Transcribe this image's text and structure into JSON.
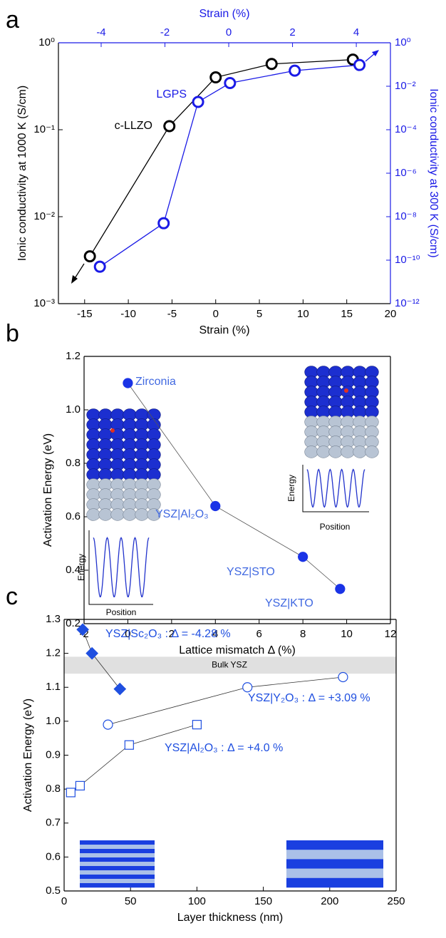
{
  "chart_data": [
    {
      "type": "line",
      "panel_label": "a",
      "xlabel": "Strain (%)",
      "x2label": "Strain (%)",
      "ylabel": "Ionic conductivity at 1000 K (S/cm)",
      "y2label": "Ionic conductivity at 300 K (S/cm)",
      "xlim": [
        -18,
        20
      ],
      "xticks": [
        -15,
        -10,
        -5,
        0,
        5,
        10,
        15,
        20
      ],
      "x2lim": [
        -5.34,
        5.07
      ],
      "x2ticks": [
        -4,
        -2,
        0,
        2,
        4
      ],
      "ylim": [
        0.001,
        1
      ],
      "ylog": true,
      "yticks": [
        {
          "value": 0.001,
          "label": "10⁻³"
        },
        {
          "value": 0.01,
          "label": "10⁻²"
        },
        {
          "value": 0.1,
          "label": "10⁻¹"
        },
        {
          "value": 1,
          "label": "10⁰"
        }
      ],
      "y2lim": [
        1e-12,
        1
      ],
      "y2log": true,
      "y2ticks": [
        {
          "value": 1e-12,
          "label": "10⁻¹²"
        },
        {
          "value": 1e-10,
          "label": "10⁻¹⁰"
        },
        {
          "value": 1e-08,
          "label": "10⁻⁸"
        },
        {
          "value": 1e-06,
          "label": "10⁻⁶"
        },
        {
          "value": 0.0001,
          "label": "10⁻⁴"
        },
        {
          "value": 0.01,
          "label": "10⁻²"
        },
        {
          "value": 1,
          "label": "10⁰"
        }
      ],
      "series": [
        {
          "name": "c-LLZO",
          "color": "#000000",
          "marker": "circle",
          "filled": false,
          "x": [
            -14.4,
            -5.3,
            0,
            6.4,
            15.7
          ],
          "values": [
            0.0035,
            0.11,
            0.4,
            0.57,
            0.64
          ]
        },
        {
          "name": "LGPS",
          "color": "#1a1ae6",
          "marker": "circle",
          "filled": false,
          "axis": "y2",
          "xaxis": "x2",
          "x": [
            -4.04,
            -2.04,
            -0.96,
            0.04,
            2.07,
            4.1
          ],
          "values": [
            5e-11,
            5e-09,
            0.0019,
            0.014,
            0.052,
            0.095
          ]
        }
      ]
    },
    {
      "type": "line",
      "panel_label": "b",
      "xlabel": "Lattice mismatch Δ (%)",
      "ylabel": "Activation Energy (eV)",
      "xlim": [
        -2,
        12
      ],
      "xticks": [
        -2,
        0,
        2,
        4,
        6,
        8,
        10,
        12
      ],
      "ylim": [
        0.2,
        1.2
      ],
      "yticks": [
        0.2,
        0.4,
        0.6,
        0.8,
        {
          "value": 1,
          "label": "1.0"
        },
        1.2
      ],
      "series": [
        {
          "color": "#1a33e6",
          "line_color": "#555555",
          "marker": "circle",
          "filled": true,
          "x": [
            0,
            4,
            8,
            9.7
          ],
          "values": [
            1.1,
            0.64,
            0.45,
            0.33
          ],
          "point_labels": [
            "Zirconia",
            "YSZ|Al₂O₃",
            "YSZ|STO",
            "YSZ|KTO"
          ]
        }
      ],
      "insets": [
        {
          "ylabel": "Energy",
          "xlabel": "Position"
        },
        {
          "ylabel": "Energy",
          "xlabel": "Position"
        }
      ]
    },
    {
      "type": "line",
      "panel_label": "c",
      "xlabel": "Layer thickness (nm)",
      "ylabel": "Activation Energy (eV)",
      "xlim": [
        0,
        250
      ],
      "xticks": [
        0,
        50,
        100,
        150,
        200,
        250
      ],
      "ylim": [
        0.5,
        1.3
      ],
      "yticks": [
        0.5,
        0.6,
        0.7,
        0.8,
        0.9,
        {
          "value": 1,
          "label": "1.0"
        },
        1.1,
        1.2,
        1.3
      ],
      "band": {
        "label": "Bulk YSZ",
        "range": [
          1.14,
          1.19
        ],
        "color": "#e0e0e0"
      },
      "series": [
        {
          "name": "YSZ|Sc₂O₃ : Δ = -4.28 %",
          "color": "#1f4fe0",
          "line_color": "#333333",
          "marker": "diamond",
          "filled": true,
          "x": [
            14,
            21,
            42
          ],
          "values": [
            1.27,
            1.2,
            1.095
          ]
        },
        {
          "name": "YSZ|Y₂O₃ : Δ = +3.09 %",
          "color": "#1f4fe0",
          "line_color": "#333333",
          "marker": "circle",
          "filled": false,
          "x": [
            33,
            138,
            210
          ],
          "values": [
            0.99,
            1.1,
            1.13
          ]
        },
        {
          "name": "YSZ|Al₂O₃ : Δ = +4.0 %",
          "color": "#1f4fe0",
          "line_color": "#333333",
          "marker": "square",
          "filled": false,
          "x": [
            5,
            12,
            49,
            100
          ],
          "values": [
            0.79,
            0.81,
            0.93,
            0.99
          ]
        }
      ]
    }
  ]
}
